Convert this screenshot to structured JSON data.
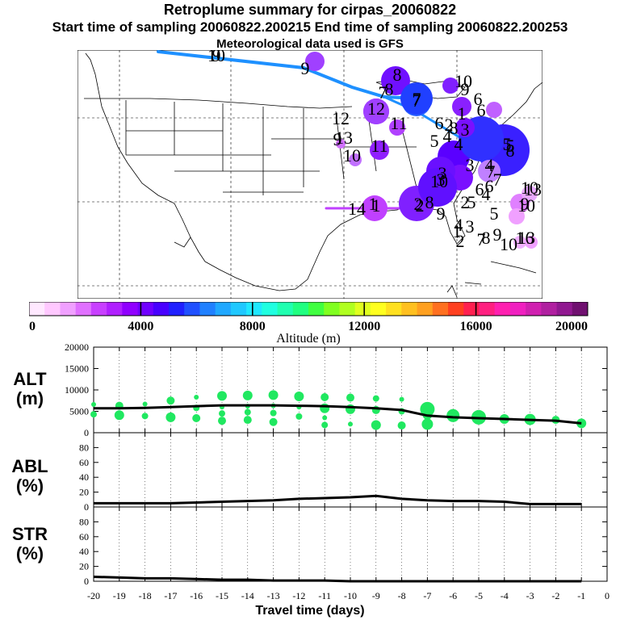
{
  "header": {
    "title": "Retroplume summary for cirpas_20060822",
    "sampling_line": "Start time of sampling 20060822.200215     End time of sampling 20060822.200253",
    "met_line": "Meteorological data used is GFS"
  },
  "colorbar": {
    "ticks": [
      "0",
      "4000",
      "8000",
      "12000",
      "16000",
      "20000"
    ],
    "label": "Altitude (m)",
    "colors": [
      "#ffe8ff",
      "#ffc8ff",
      "#f0a0ff",
      "#e070ff",
      "#c840ff",
      "#b020ff",
      "#9000ff",
      "#7000ff",
      "#4800ff",
      "#2020ff",
      "#2050ff",
      "#2080ff",
      "#20a8ff",
      "#20c8ff",
      "#20e8ff",
      "#20ffe0",
      "#20ffb0",
      "#20ff80",
      "#40ff40",
      "#80ff20",
      "#b0ff20",
      "#e0ff20",
      "#ffff20",
      "#ffe020",
      "#ffc020",
      "#ffa020",
      "#ff7020",
      "#ff4020",
      "#ff2050",
      "#ff2080",
      "#ff20b0",
      "#f020c0",
      "#d020b0",
      "#b020a0",
      "#901890",
      "#701070"
    ]
  },
  "map": {
    "trajectory_labels": [
      "10",
      "9",
      "8",
      "7",
      "6",
      "5",
      "4",
      "3",
      "2",
      "1",
      "12",
      "11",
      "10",
      "9",
      "8",
      "7",
      "6",
      "5",
      "4",
      "3",
      "2",
      "1",
      "13",
      "10",
      "9",
      "8",
      "7",
      "6",
      "5",
      "4",
      "3",
      "2",
      "1",
      "14",
      "13",
      "12",
      "11",
      "10",
      "9",
      "8",
      "7",
      "6",
      "5",
      "4",
      "3",
      "2",
      "1",
      "10",
      "9",
      "8",
      "7",
      "6",
      "5",
      "4",
      "3",
      "2",
      "1",
      "10",
      "9",
      "8",
      "7",
      "6",
      "13",
      "10",
      "9"
    ]
  },
  "chart_data": [
    {
      "type": "scatter",
      "panel": "ALT (m)",
      "ylabel": "ALT\n(m)",
      "ylabel_lines": [
        "ALT",
        "(m)"
      ],
      "ylim": [
        0,
        20000
      ],
      "yticks": [
        "0",
        "5000",
        "10000",
        "15000",
        "20000"
      ],
      "x": [
        -20,
        -19,
        -18,
        -17,
        -16,
        -15,
        -14,
        -13,
        -12,
        -11,
        -10,
        -9,
        -8,
        -7,
        -6,
        -5,
        -4,
        -3,
        -2,
        -1
      ],
      "mean_line": [
        5700,
        5700,
        5800,
        6000,
        6200,
        6400,
        6400,
        6400,
        6300,
        6200,
        6000,
        5700,
        5300,
        4000,
        3600,
        3400,
        3200,
        3000,
        2800,
        2200
      ],
      "points": [
        {
          "x": -20,
          "y": 6600
        },
        {
          "x": -20,
          "y": 4300
        },
        {
          "x": -19,
          "y": 6300
        },
        {
          "x": -19,
          "y": 4100
        },
        {
          "x": -18,
          "y": 6700
        },
        {
          "x": -18,
          "y": 3900
        },
        {
          "x": -17,
          "y": 7500
        },
        {
          "x": -17,
          "y": 3600
        },
        {
          "x": -16,
          "y": 8300
        },
        {
          "x": -16,
          "y": 5800
        },
        {
          "x": -16,
          "y": 3400
        },
        {
          "x": -15,
          "y": 8600
        },
        {
          "x": -15,
          "y": 6000
        },
        {
          "x": -15,
          "y": 4500
        },
        {
          "x": -15,
          "y": 2800
        },
        {
          "x": -14,
          "y": 8700
        },
        {
          "x": -14,
          "y": 6200
        },
        {
          "x": -14,
          "y": 4800
        },
        {
          "x": -14,
          "y": 3000
        },
        {
          "x": -13,
          "y": 8800
        },
        {
          "x": -13,
          "y": 6300
        },
        {
          "x": -13,
          "y": 4600
        },
        {
          "x": -13,
          "y": 2500
        },
        {
          "x": -12,
          "y": 8500
        },
        {
          "x": -12,
          "y": 6000
        },
        {
          "x": -12,
          "y": 3800
        },
        {
          "x": -11,
          "y": 8300
        },
        {
          "x": -11,
          "y": 5700
        },
        {
          "x": -11,
          "y": 3500
        },
        {
          "x": -11,
          "y": 1800
        },
        {
          "x": -10,
          "y": 8200
        },
        {
          "x": -10,
          "y": 5500
        },
        {
          "x": -10,
          "y": 2000
        },
        {
          "x": -9,
          "y": 8000
        },
        {
          "x": -9,
          "y": 5300
        },
        {
          "x": -9,
          "y": 1800
        },
        {
          "x": -8,
          "y": 7800
        },
        {
          "x": -8,
          "y": 5000
        },
        {
          "x": -8,
          "y": 1700
        },
        {
          "x": -7,
          "y": 5500
        },
        {
          "x": -7,
          "y": 4200
        },
        {
          "x": -7,
          "y": 2000
        },
        {
          "x": -6,
          "y": 4000
        },
        {
          "x": -5,
          "y": 3600
        },
        {
          "x": -4,
          "y": 3200
        },
        {
          "x": -3,
          "y": 3100
        },
        {
          "x": -2,
          "y": 3000
        },
        {
          "x": -1,
          "y": 2200
        }
      ]
    },
    {
      "type": "line",
      "panel": "ABL (%)",
      "ylabel": "ABL\n(%)",
      "ylabel_lines": [
        "ABL",
        "(%)"
      ],
      "ylim": [
        0,
        100
      ],
      "yticks": [
        "0",
        "20",
        "40",
        "60",
        "80"
      ],
      "x": [
        -20,
        -19,
        -18,
        -17,
        -16,
        -15,
        -14,
        -13,
        -12,
        -11,
        -10,
        -9,
        -8,
        -7,
        -6,
        -5,
        -4,
        -3,
        -2,
        -1
      ],
      "values": [
        5,
        5,
        5,
        5,
        6,
        7,
        8,
        9,
        11,
        12,
        13,
        15,
        11,
        9,
        8,
        8,
        7,
        4,
        4,
        4
      ]
    },
    {
      "type": "line",
      "panel": "STR (%)",
      "ylabel": "STR\n(%)",
      "ylabel_lines": [
        "STR",
        "(%)"
      ],
      "ylim": [
        0,
        100
      ],
      "yticks": [
        "0",
        "20",
        "40",
        "60",
        "80"
      ],
      "x": [
        -20,
        -19,
        -18,
        -17,
        -16,
        -15,
        -14,
        -13,
        -12,
        -11,
        -10,
        -9,
        -8,
        -7,
        -6,
        -5,
        -4,
        -3,
        -2,
        -1
      ],
      "values": [
        6,
        5,
        4,
        4,
        3,
        2,
        2,
        1,
        1,
        1,
        0,
        0,
        0,
        0,
        0,
        0,
        0,
        0,
        0,
        0
      ]
    }
  ],
  "x_axis": {
    "ticks": [
      "-20",
      "-19",
      "-18",
      "-17",
      "-16",
      "-15",
      "-14",
      "-13",
      "-12",
      "-11",
      "-10",
      "-9",
      "-8",
      "-7",
      "-6",
      "-5",
      "-4",
      "-3",
      "-2",
      "-1",
      "0"
    ],
    "label": "Travel time (days)"
  }
}
